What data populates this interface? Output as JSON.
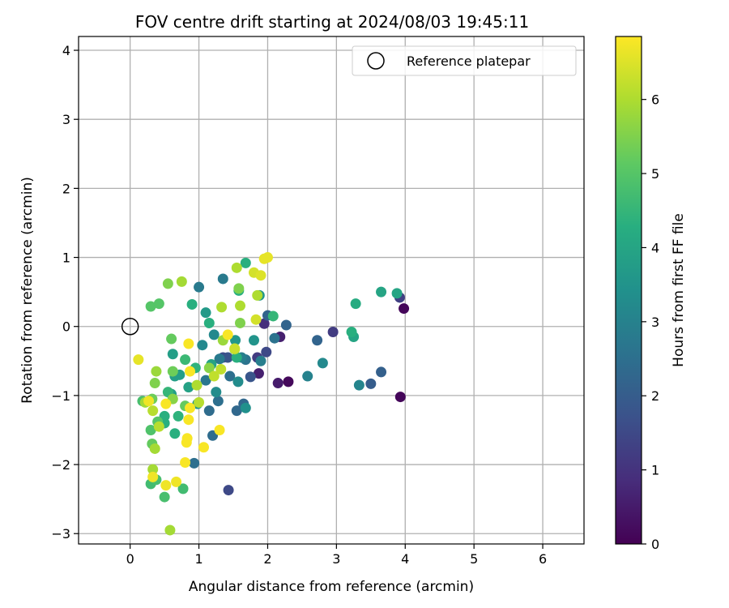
{
  "chart_data": {
    "type": "scatter",
    "title": "FOV centre drift starting at 2024/08/03 19:45:11",
    "xlabel": "Angular distance from reference (arcmin)",
    "ylabel": "Rotation from reference (arcmin)",
    "xlim": [
      -0.75,
      6.6
    ],
    "ylim": [
      -3.15,
      4.2
    ],
    "xticks": [
      0,
      1,
      2,
      3,
      4,
      5,
      6
    ],
    "yticks": [
      -3,
      -2,
      -1,
      0,
      1,
      2,
      3,
      4
    ],
    "grid": true,
    "legend": {
      "position": "top-right",
      "entries": [
        "Reference platepar"
      ]
    },
    "reference_point": {
      "x": 0,
      "y": 0
    },
    "colorbar": {
      "label": "Hours from first FF file",
      "colormap": "viridis",
      "range": [
        0,
        6.85
      ],
      "ticks": [
        0,
        1,
        2,
        3,
        4,
        5,
        6
      ]
    },
    "points": [
      {
        "x": 3.98,
        "y": 0.26,
        "c": 0.1
      },
      {
        "x": 3.93,
        "y": -1.02,
        "c": 0.1
      },
      {
        "x": 2.3,
        "y": -0.8,
        "c": 0.15
      },
      {
        "x": 2.15,
        "y": -0.82,
        "c": 0.5
      },
      {
        "x": 1.87,
        "y": -0.68,
        "c": 0.6
      },
      {
        "x": 2.18,
        "y": -0.15,
        "c": 0.6
      },
      {
        "x": 1.95,
        "y": 0.04,
        "c": 0.9
      },
      {
        "x": 2.95,
        "y": -0.08,
        "c": 1.2
      },
      {
        "x": 1.85,
        "y": -0.45,
        "c": 1.2
      },
      {
        "x": 3.92,
        "y": 0.42,
        "c": 1.3
      },
      {
        "x": 1.43,
        "y": -2.37,
        "c": 1.5
      },
      {
        "x": 1.98,
        "y": -0.37,
        "c": 1.5
      },
      {
        "x": 1.35,
        "y": -0.45,
        "c": 1.6
      },
      {
        "x": 1.42,
        "y": -0.45,
        "c": 1.8
      },
      {
        "x": 1.75,
        "y": -0.73,
        "c": 1.8
      },
      {
        "x": 3.5,
        "y": -0.83,
        "c": 2.0
      },
      {
        "x": 3.65,
        "y": -0.66,
        "c": 2.1
      },
      {
        "x": 2.72,
        "y": -0.2,
        "c": 2.2
      },
      {
        "x": 2.27,
        "y": 0.02,
        "c": 2.2
      },
      {
        "x": 2.0,
        "y": 0.16,
        "c": 2.2
      },
      {
        "x": 1.55,
        "y": -1.22,
        "c": 2.3
      },
      {
        "x": 1.65,
        "y": -1.12,
        "c": 2.3
      },
      {
        "x": 1.2,
        "y": -1.58,
        "c": 2.4
      },
      {
        "x": 1.15,
        "y": -1.22,
        "c": 2.4
      },
      {
        "x": 1.28,
        "y": -1.08,
        "c": 2.5
      },
      {
        "x": 0.93,
        "y": -1.98,
        "c": 2.5
      },
      {
        "x": 1.45,
        "y": -0.72,
        "c": 2.5
      },
      {
        "x": 1.68,
        "y": -0.48,
        "c": 2.6
      },
      {
        "x": 2.1,
        "y": -0.17,
        "c": 2.6
      },
      {
        "x": 1.1,
        "y": -0.78,
        "c": 2.7
      },
      {
        "x": 1.35,
        "y": 0.69,
        "c": 2.8
      },
      {
        "x": 1.0,
        "y": 0.57,
        "c": 2.8
      },
      {
        "x": 1.3,
        "y": -0.47,
        "c": 2.8
      },
      {
        "x": 1.62,
        "y": -0.45,
        "c": 2.9
      },
      {
        "x": 1.9,
        "y": -0.5,
        "c": 2.9
      },
      {
        "x": 2.58,
        "y": -0.72,
        "c": 3.0
      },
      {
        "x": 3.33,
        "y": -0.85,
        "c": 3.1
      },
      {
        "x": 2.8,
        "y": -0.53,
        "c": 3.2
      },
      {
        "x": 1.05,
        "y": -0.27,
        "c": 3.2
      },
      {
        "x": 1.22,
        "y": -0.12,
        "c": 3.2
      },
      {
        "x": 1.57,
        "y": -0.8,
        "c": 3.3
      },
      {
        "x": 1.25,
        "y": -0.95,
        "c": 3.3
      },
      {
        "x": 1.68,
        "y": -1.18,
        "c": 3.4
      },
      {
        "x": 0.98,
        "y": -1.12,
        "c": 3.5
      },
      {
        "x": 1.8,
        "y": -0.2,
        "c": 3.5
      },
      {
        "x": 1.53,
        "y": -0.2,
        "c": 3.6
      },
      {
        "x": 1.88,
        "y": 0.45,
        "c": 3.6
      },
      {
        "x": 1.1,
        "y": 0.2,
        "c": 3.7
      },
      {
        "x": 0.65,
        "y": -0.72,
        "c": 3.8
      },
      {
        "x": 0.72,
        "y": -0.7,
        "c": 3.8
      },
      {
        "x": 0.62,
        "y": -0.4,
        "c": 3.8
      },
      {
        "x": 0.6,
        "y": -0.98,
        "c": 3.8
      },
      {
        "x": 0.85,
        "y": -0.88,
        "c": 3.9
      },
      {
        "x": 1.18,
        "y": -0.55,
        "c": 3.9
      },
      {
        "x": 3.65,
        "y": 0.5,
        "c": 4.0
      },
      {
        "x": 3.88,
        "y": 0.48,
        "c": 4.0
      },
      {
        "x": 3.25,
        "y": -0.15,
        "c": 4.0
      },
      {
        "x": 3.28,
        "y": 0.33,
        "c": 4.2
      },
      {
        "x": 3.22,
        "y": -0.08,
        "c": 4.3
      },
      {
        "x": 1.68,
        "y": 0.92,
        "c": 4.3
      },
      {
        "x": 1.58,
        "y": 0.52,
        "c": 4.3
      },
      {
        "x": 0.9,
        "y": 0.32,
        "c": 4.3
      },
      {
        "x": 1.15,
        "y": 0.05,
        "c": 4.3
      },
      {
        "x": 1.55,
        "y": -0.45,
        "c": 4.3
      },
      {
        "x": 0.5,
        "y": -1.4,
        "c": 4.3
      },
      {
        "x": 0.5,
        "y": -1.3,
        "c": 4.3
      },
      {
        "x": 0.65,
        "y": -1.55,
        "c": 4.3
      },
      {
        "x": 0.7,
        "y": -1.3,
        "c": 4.4
      },
      {
        "x": 0.95,
        "y": -0.6,
        "c": 4.4
      },
      {
        "x": 2.08,
        "y": 0.15,
        "c": 4.5
      },
      {
        "x": 0.55,
        "y": -0.95,
        "c": 4.5
      },
      {
        "x": 0.8,
        "y": -0.48,
        "c": 4.6
      },
      {
        "x": 0.3,
        "y": -2.28,
        "c": 4.7
      },
      {
        "x": 0.77,
        "y": -2.35,
        "c": 4.7
      },
      {
        "x": 0.5,
        "y": -2.47,
        "c": 4.8
      },
      {
        "x": 0.38,
        "y": -2.22,
        "c": 4.8
      },
      {
        "x": 0.18,
        "y": -1.08,
        "c": 4.8
      },
      {
        "x": 0.3,
        "y": -1.5,
        "c": 4.9
      },
      {
        "x": 0.4,
        "y": -1.38,
        "c": 5.0
      },
      {
        "x": 0.3,
        "y": 0.29,
        "c": 5.0
      },
      {
        "x": 0.42,
        "y": 0.33,
        "c": 5.0
      },
      {
        "x": 0.6,
        "y": -0.18,
        "c": 5.2
      },
      {
        "x": 0.8,
        "y": -1.15,
        "c": 5.2
      },
      {
        "x": 0.32,
        "y": -1.7,
        "c": 5.2
      },
      {
        "x": 0.32,
        "y": -1.05,
        "c": 5.3
      },
      {
        "x": 0.62,
        "y": -0.65,
        "c": 5.3
      },
      {
        "x": 1.58,
        "y": 0.55,
        "c": 5.5
      },
      {
        "x": 1.6,
        "y": 0.05,
        "c": 5.5
      },
      {
        "x": 0.55,
        "y": 0.62,
        "c": 5.5
      },
      {
        "x": 0.36,
        "y": -0.82,
        "c": 5.5
      },
      {
        "x": 0.62,
        "y": -1.05,
        "c": 5.6
      },
      {
        "x": 1.15,
        "y": -0.6,
        "c": 5.6
      },
      {
        "x": 1.52,
        "y": -0.33,
        "c": 5.7
      },
      {
        "x": 1.35,
        "y": -0.2,
        "c": 5.8
      },
      {
        "x": 0.38,
        "y": -0.65,
        "c": 5.8
      },
      {
        "x": 0.22,
        "y": -1.1,
        "c": 5.9
      },
      {
        "x": 0.36,
        "y": -1.77,
        "c": 5.9
      },
      {
        "x": 0.33,
        "y": -2.07,
        "c": 5.9
      },
      {
        "x": 0.58,
        "y": -2.95,
        "c": 5.9
      },
      {
        "x": 0.75,
        "y": 0.65,
        "c": 5.9
      },
      {
        "x": 1.55,
        "y": 0.85,
        "c": 6.0
      },
      {
        "x": 1.6,
        "y": 0.3,
        "c": 6.0
      },
      {
        "x": 1.85,
        "y": 0.45,
        "c": 6.0
      },
      {
        "x": 1.33,
        "y": 0.28,
        "c": 6.0
      },
      {
        "x": 0.97,
        "y": -0.85,
        "c": 6.0
      },
      {
        "x": 1.0,
        "y": -1.1,
        "c": 6.1
      },
      {
        "x": 0.42,
        "y": -1.45,
        "c": 6.1
      },
      {
        "x": 0.33,
        "y": -1.22,
        "c": 6.1
      },
      {
        "x": 1.32,
        "y": -0.62,
        "c": 6.2
      },
      {
        "x": 1.22,
        "y": -0.72,
        "c": 6.2
      },
      {
        "x": 1.52,
        "y": -0.32,
        "c": 6.3
      },
      {
        "x": 1.83,
        "y": 0.1,
        "c": 6.4
      },
      {
        "x": 1.8,
        "y": 0.78,
        "c": 6.4
      },
      {
        "x": 1.9,
        "y": 0.74,
        "c": 6.5
      },
      {
        "x": 2.0,
        "y": 1.0,
        "c": 6.6
      },
      {
        "x": 1.95,
        "y": 0.98,
        "c": 6.6
      },
      {
        "x": 0.12,
        "y": -0.48,
        "c": 6.6
      },
      {
        "x": 0.27,
        "y": -1.08,
        "c": 6.7
      },
      {
        "x": 0.33,
        "y": -2.18,
        "c": 6.7
      },
      {
        "x": 0.52,
        "y": -2.3,
        "c": 6.7
      },
      {
        "x": 0.67,
        "y": -2.25,
        "c": 6.7
      },
      {
        "x": 0.8,
        "y": -1.97,
        "c": 6.8
      },
      {
        "x": 0.83,
        "y": -1.62,
        "c": 6.8
      },
      {
        "x": 0.82,
        "y": -1.68,
        "c": 6.8
      },
      {
        "x": 1.07,
        "y": -1.75,
        "c": 6.8
      },
      {
        "x": 0.52,
        "y": -1.12,
        "c": 6.8
      },
      {
        "x": 0.85,
        "y": -1.35,
        "c": 6.8
      },
      {
        "x": 0.85,
        "y": -0.25,
        "c": 6.8
      },
      {
        "x": 1.42,
        "y": -0.12,
        "c": 6.8
      },
      {
        "x": 0.87,
        "y": -0.65,
        "c": 6.8
      },
      {
        "x": 1.3,
        "y": -1.5,
        "c": 6.8
      },
      {
        "x": 0.87,
        "y": -1.18,
        "c": 6.8
      }
    ]
  }
}
